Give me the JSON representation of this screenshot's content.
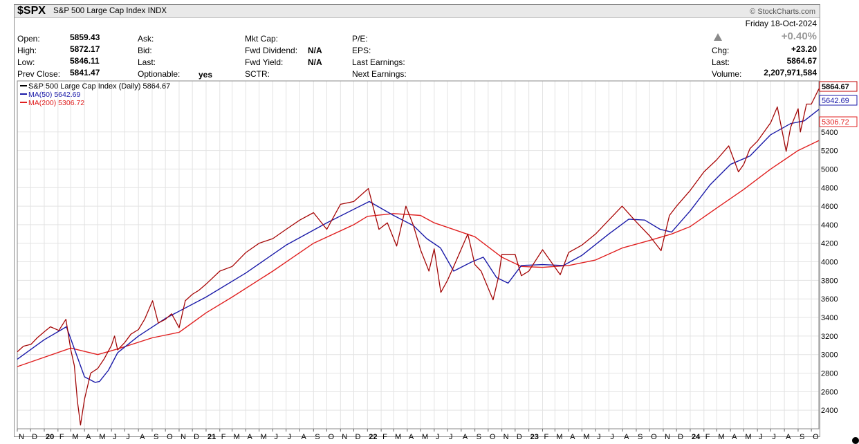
{
  "header": {
    "symbol": "$SPX",
    "name": "S&P 500 Large Cap Index",
    "exchange": "INDX",
    "brand": "StockCharts.com",
    "date": "Friday  18-Oct-2024",
    "change_pct": "+0.40%",
    "chg_label": "Chg:",
    "chg_value": "+23.20",
    "last_label": "Last:",
    "last_value": "5864.67",
    "volume_label": "Volume:",
    "volume_value": "2,207,971,584",
    "up_arrow": "up-triangle",
    "open_label": "Open:",
    "open_value": "5859.43",
    "high_label": "High:",
    "high_value": "5872.17",
    "low_label": "Low:",
    "low_value": "5846.11",
    "prev_label": "Prev Close:",
    "prev_value": "5841.47",
    "ask_label": "Ask:",
    "bid_label": "Bid:",
    "last2_label": "Last:",
    "optionable_label": "Optionable:",
    "optionable_value": "yes",
    "mktcap_label": "Mkt Cap:",
    "fwddiv_label": "Fwd Dividend:",
    "fwddiv_value": "N/A",
    "fwdyield_label": "Fwd Yield:",
    "fwdyield_value": "N/A",
    "sctr_label": "SCTR:",
    "pe_label": "P/E:",
    "eps_label": "EPS:",
    "lastearn_label": "Last Earnings:",
    "nextearn_label": "Next Earnings:"
  },
  "colors": {
    "price": "#c00000",
    "ma50": "#1a1aa8",
    "ma200": "#e02020",
    "grid": "#e3e3e3",
    "up_arrow": "#8a8a8a"
  },
  "chart_data": {
    "type": "line",
    "x_axis": {
      "tick_labels": [
        "N",
        "D",
        "20",
        "F",
        "M",
        "A",
        "M",
        "J",
        "J",
        "A",
        "S",
        "O",
        "N",
        "D",
        "21",
        "F",
        "M",
        "A",
        "M",
        "J",
        "J",
        "A",
        "S",
        "O",
        "N",
        "D",
        "22",
        "F",
        "M",
        "A",
        "M",
        "J",
        "J",
        "A",
        "S",
        "O",
        "N",
        "D",
        "23",
        "F",
        "M",
        "A",
        "M",
        "J",
        "J",
        "A",
        "S",
        "O",
        "N",
        "D",
        "24",
        "F",
        "M",
        "A",
        "M",
        "J",
        "J",
        "A",
        "S",
        "O"
      ],
      "bold_labels": [
        "20",
        "21",
        "22",
        "23",
        "24"
      ],
      "range": [
        "2019-11-01",
        "2024-10-18"
      ]
    },
    "y_axis": {
      "tick_labels": [
        2400,
        2600,
        2800,
        3000,
        3200,
        3400,
        3600,
        3800,
        4000,
        4200,
        4400,
        4600,
        4800,
        5000,
        5200,
        5400
      ],
      "range": [
        2200,
        5950
      ],
      "side": "right",
      "grid": true
    },
    "legend": {
      "placement": "top-left",
      "entries": [
        {
          "text": "S&P 500 Large Cap Index (Daily) 5864.67",
          "series": "price"
        },
        {
          "text": "MA(50) 5642.69",
          "series": "ma50"
        },
        {
          "text": "MA(200) 5306.72",
          "series": "ma200"
        }
      ]
    },
    "last_value_tags": [
      {
        "text": "5864.67",
        "series": "price",
        "value": 5864.67
      },
      {
        "text": "5642.69",
        "series": "ma50",
        "value": 5642.69
      },
      {
        "text": "5306.72",
        "series": "ma200",
        "value": 5306.72
      }
    ],
    "series": [
      {
        "name": "S&P 500 Large Cap Index (Daily)",
        "key": "price",
        "x": [
          "2019-11-01",
          "2019-11-15",
          "2019-12-02",
          "2019-12-16",
          "2020-01-02",
          "2020-01-15",
          "2020-02-03",
          "2020-02-19",
          "2020-03-01",
          "2020-03-09",
          "2020-03-16",
          "2020-03-23",
          "2020-04-01",
          "2020-04-15",
          "2020-05-01",
          "2020-05-15",
          "2020-06-01",
          "2020-06-08",
          "2020-06-15",
          "2020-07-01",
          "2020-07-15",
          "2020-08-01",
          "2020-08-15",
          "2020-09-02",
          "2020-09-15",
          "2020-10-01",
          "2020-10-15",
          "2020-11-01",
          "2020-11-15",
          "2020-12-01",
          "2020-12-15",
          "2021-01-01",
          "2021-02-01",
          "2021-03-01",
          "2021-04-01",
          "2021-05-01",
          "2021-06-01",
          "2021-07-01",
          "2021-08-01",
          "2021-09-01",
          "2021-10-01",
          "2021-11-01",
          "2021-12-01",
          "2022-01-03",
          "2022-01-27",
          "2022-02-15",
          "2022-03-08",
          "2022-03-29",
          "2022-04-15",
          "2022-05-01",
          "2022-05-20",
          "2022-06-01",
          "2022-06-16",
          "2022-07-01",
          "2022-07-15",
          "2022-08-16",
          "2022-09-01",
          "2022-09-15",
          "2022-10-12",
          "2022-10-25",
          "2022-11-01",
          "2022-12-01",
          "2022-12-15",
          "2023-01-01",
          "2023-02-01",
          "2023-03-13",
          "2023-04-01",
          "2023-05-01",
          "2023-06-01",
          "2023-07-01",
          "2023-07-31",
          "2023-09-01",
          "2023-10-01",
          "2023-10-27",
          "2023-11-15",
          "2023-12-01",
          "2024-01-01",
          "2024-02-01",
          "2024-03-01",
          "2024-03-28",
          "2024-04-19",
          "2024-05-01",
          "2024-05-15",
          "2024-06-01",
          "2024-07-01",
          "2024-07-16",
          "2024-08-05",
          "2024-08-15",
          "2024-09-01",
          "2024-09-06",
          "2024-09-20",
          "2024-10-01",
          "2024-10-18"
        ],
        "values": [
          3030,
          3090,
          3110,
          3180,
          3250,
          3300,
          3260,
          3380,
          3050,
          2880,
          2500,
          2240,
          2520,
          2800,
          2850,
          2950,
          3100,
          3200,
          3050,
          3130,
          3220,
          3270,
          3380,
          3580,
          3340,
          3380,
          3440,
          3290,
          3580,
          3650,
          3690,
          3760,
          3900,
          3950,
          4100,
          4200,
          4250,
          4350,
          4450,
          4530,
          4350,
          4620,
          4650,
          4790,
          4350,
          4420,
          4170,
          4600,
          4390,
          4130,
          3900,
          4140,
          3670,
          3800,
          3950,
          4300,
          3970,
          3900,
          3590,
          3850,
          4080,
          4080,
          3850,
          3900,
          4130,
          3860,
          4100,
          4180,
          4300,
          4450,
          4600,
          4430,
          4280,
          4120,
          4500,
          4600,
          4770,
          4970,
          5100,
          5250,
          4970,
          5050,
          5220,
          5300,
          5500,
          5670,
          5190,
          5450,
          5650,
          5400,
          5700,
          5700,
          5864.67
        ]
      },
      {
        "name": "MA(50)",
        "key": "ma50",
        "x": [
          "2019-11-01",
          "2020-01-01",
          "2020-02-20",
          "2020-03-10",
          "2020-04-01",
          "2020-04-25",
          "2020-05-05",
          "2020-05-25",
          "2020-06-15",
          "2020-08-01",
          "2020-10-01",
          "2021-01-01",
          "2021-04-01",
          "2021-07-01",
          "2021-10-01",
          "2022-01-05",
          "2022-03-01",
          "2022-04-15",
          "2022-05-15",
          "2022-06-15",
          "2022-07-15",
          "2022-08-25",
          "2022-09-20",
          "2022-10-20",
          "2022-11-15",
          "2022-12-15",
          "2023-02-01",
          "2023-03-20",
          "2023-05-01",
          "2023-07-01",
          "2023-08-15",
          "2023-09-20",
          "2023-10-25",
          "2023-11-20",
          "2024-01-01",
          "2024-02-15",
          "2024-04-01",
          "2024-05-15",
          "2024-07-01",
          "2024-08-15",
          "2024-09-15",
          "2024-10-18"
        ],
        "values": [
          2950,
          3160,
          3300,
          3050,
          2760,
          2700,
          2710,
          2830,
          3020,
          3200,
          3390,
          3620,
          3880,
          4180,
          4420,
          4650,
          4500,
          4390,
          4250,
          4150,
          3900,
          4000,
          4050,
          3830,
          3770,
          3960,
          3970,
          3960,
          4070,
          4300,
          4460,
          4450,
          4350,
          4320,
          4550,
          4830,
          5050,
          5140,
          5370,
          5490,
          5520,
          5642.69
        ]
      },
      {
        "name": "MA(200)",
        "key": "ma200",
        "x": [
          "2019-11-01",
          "2020-03-01",
          "2020-05-01",
          "2020-06-15",
          "2020-09-01",
          "2020-11-01",
          "2021-01-01",
          "2021-03-01",
          "2021-06-01",
          "2021-09-01",
          "2021-12-01",
          "2022-01-01",
          "2022-03-01",
          "2022-05-01",
          "2022-06-01",
          "2022-09-01",
          "2022-11-01",
          "2022-12-15",
          "2023-02-01",
          "2023-04-01",
          "2023-06-01",
          "2023-08-01",
          "2023-10-01",
          "2023-11-20",
          "2024-01-01",
          "2024-03-01",
          "2024-05-01",
          "2024-07-01",
          "2024-09-01",
          "2024-10-18"
        ],
        "values": [
          2870,
          3070,
          3000,
          3060,
          3180,
          3240,
          3450,
          3620,
          3900,
          4200,
          4400,
          4490,
          4520,
          4500,
          4420,
          4270,
          4050,
          3950,
          3940,
          3960,
          4020,
          4150,
          4230,
          4300,
          4380,
          4580,
          4780,
          5000,
          5200,
          5306.72
        ]
      }
    ]
  }
}
